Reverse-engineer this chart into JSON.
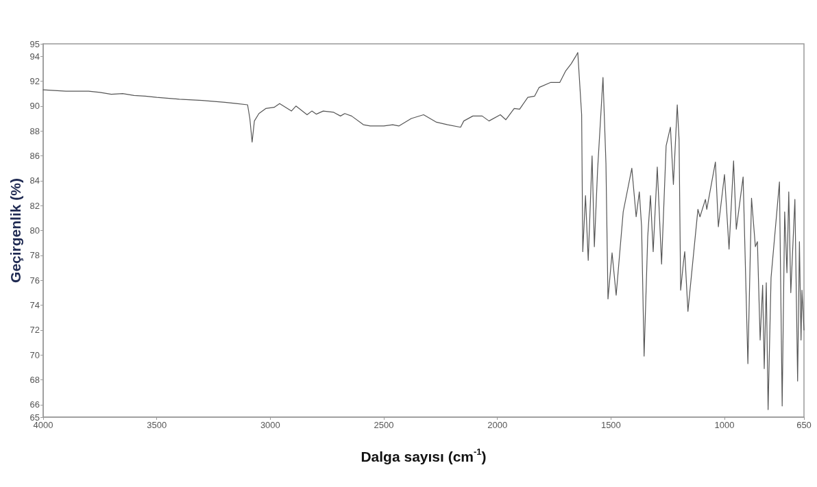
{
  "chart_data": {
    "type": "line",
    "xlabel": "Dalga sayısı (cm$^{-1}$)",
    "ylabel": "Geçirgenlik (%)",
    "xlim": [
      4000,
      650
    ],
    "xticks": [
      4000,
      3500,
      3000,
      2500,
      2000,
      1500,
      1000,
      650
    ],
    "ylim": [
      65,
      95
    ],
    "yticks": [
      65,
      66,
      68,
      70,
      72,
      74,
      76,
      78,
      80,
      82,
      84,
      86,
      88,
      90,
      92,
      94,
      95
    ],
    "grid": false,
    "marker": "none",
    "line_style": "solid",
    "series": [
      {
        "color": "#555555",
        "x": [
          4000,
          3900,
          3800,
          3750,
          3700,
          3650,
          3600,
          3550,
          3500,
          3400,
          3300,
          3200,
          3150,
          3100,
          3090,
          3080,
          3070,
          3050,
          3020,
          2983,
          2959,
          2907,
          2887,
          2838,
          2817,
          2797,
          2767,
          2721,
          2691,
          2672,
          2642,
          2590,
          2560,
          2500,
          2461,
          2434,
          2379,
          2325,
          2268,
          2219,
          2162,
          2148,
          2108,
          2067,
          2037,
          1987,
          1963,
          1926,
          1902,
          1866,
          1836,
          1816,
          1765,
          1725,
          1700,
          1675,
          1655,
          1646,
          1629,
          1624,
          1612,
          1600,
          1583,
          1573,
          1559,
          1535,
          1522,
          1513,
          1495,
          1477,
          1446,
          1408,
          1389,
          1375,
          1365,
          1354,
          1338,
          1326,
          1314,
          1296,
          1277,
          1257,
          1238,
          1225,
          1208,
          1200,
          1193,
          1181,
          1175,
          1161,
          1117,
          1108,
          1084,
          1078,
          1040,
          1027,
          1000,
          980,
          960,
          948,
          918,
          897,
          881,
          864,
          855,
          843,
          832,
          825,
          816,
          808,
          795,
          758,
          746,
          735,
          725,
          717,
          708,
          690,
          678,
          670,
          663,
          659,
          650
        ],
        "values": [
          91.3,
          91.2,
          91.2,
          91.1,
          90.95,
          91.0,
          90.85,
          90.8,
          90.7,
          90.55,
          90.45,
          90.3,
          90.2,
          90.1,
          89.0,
          87.1,
          88.8,
          89.4,
          89.8,
          89.9,
          90.2,
          89.6,
          90.0,
          89.3,
          89.6,
          89.35,
          89.6,
          89.5,
          89.2,
          89.4,
          89.2,
          88.5,
          88.4,
          88.4,
          88.5,
          88.4,
          89.0,
          89.3,
          88.7,
          88.5,
          88.3,
          88.8,
          89.2,
          89.2,
          88.8,
          89.3,
          88.9,
          89.8,
          89.75,
          90.7,
          90.8,
          91.5,
          91.9,
          91.9,
          92.8,
          93.4,
          94.0,
          94.3,
          89.3,
          78.3,
          82.8,
          77.6,
          86.0,
          78.7,
          84.8,
          92.3,
          85.4,
          74.5,
          78.2,
          74.8,
          81.5,
          85.0,
          81.1,
          83.1,
          80.3,
          69.9,
          79.5,
          82.8,
          78.3,
          85.1,
          77.3,
          86.8,
          88.3,
          83.7,
          90.1,
          87.3,
          75.2,
          77.4,
          78.3,
          73.5,
          81.7,
          81.1,
          82.5,
          81.7,
          85.5,
          80.3,
          84.5,
          78.5,
          85.6,
          80.1,
          84.3,
          69.3,
          82.6,
          78.7,
          79.1,
          71.2,
          75.6,
          68.9,
          75.8,
          65.6,
          76.2,
          83.9,
          65.9,
          81.5,
          76.6,
          83.1,
          75.0,
          82.5,
          67.9,
          79.1,
          71.2,
          75.2,
          72.0
        ]
      }
    ]
  }
}
